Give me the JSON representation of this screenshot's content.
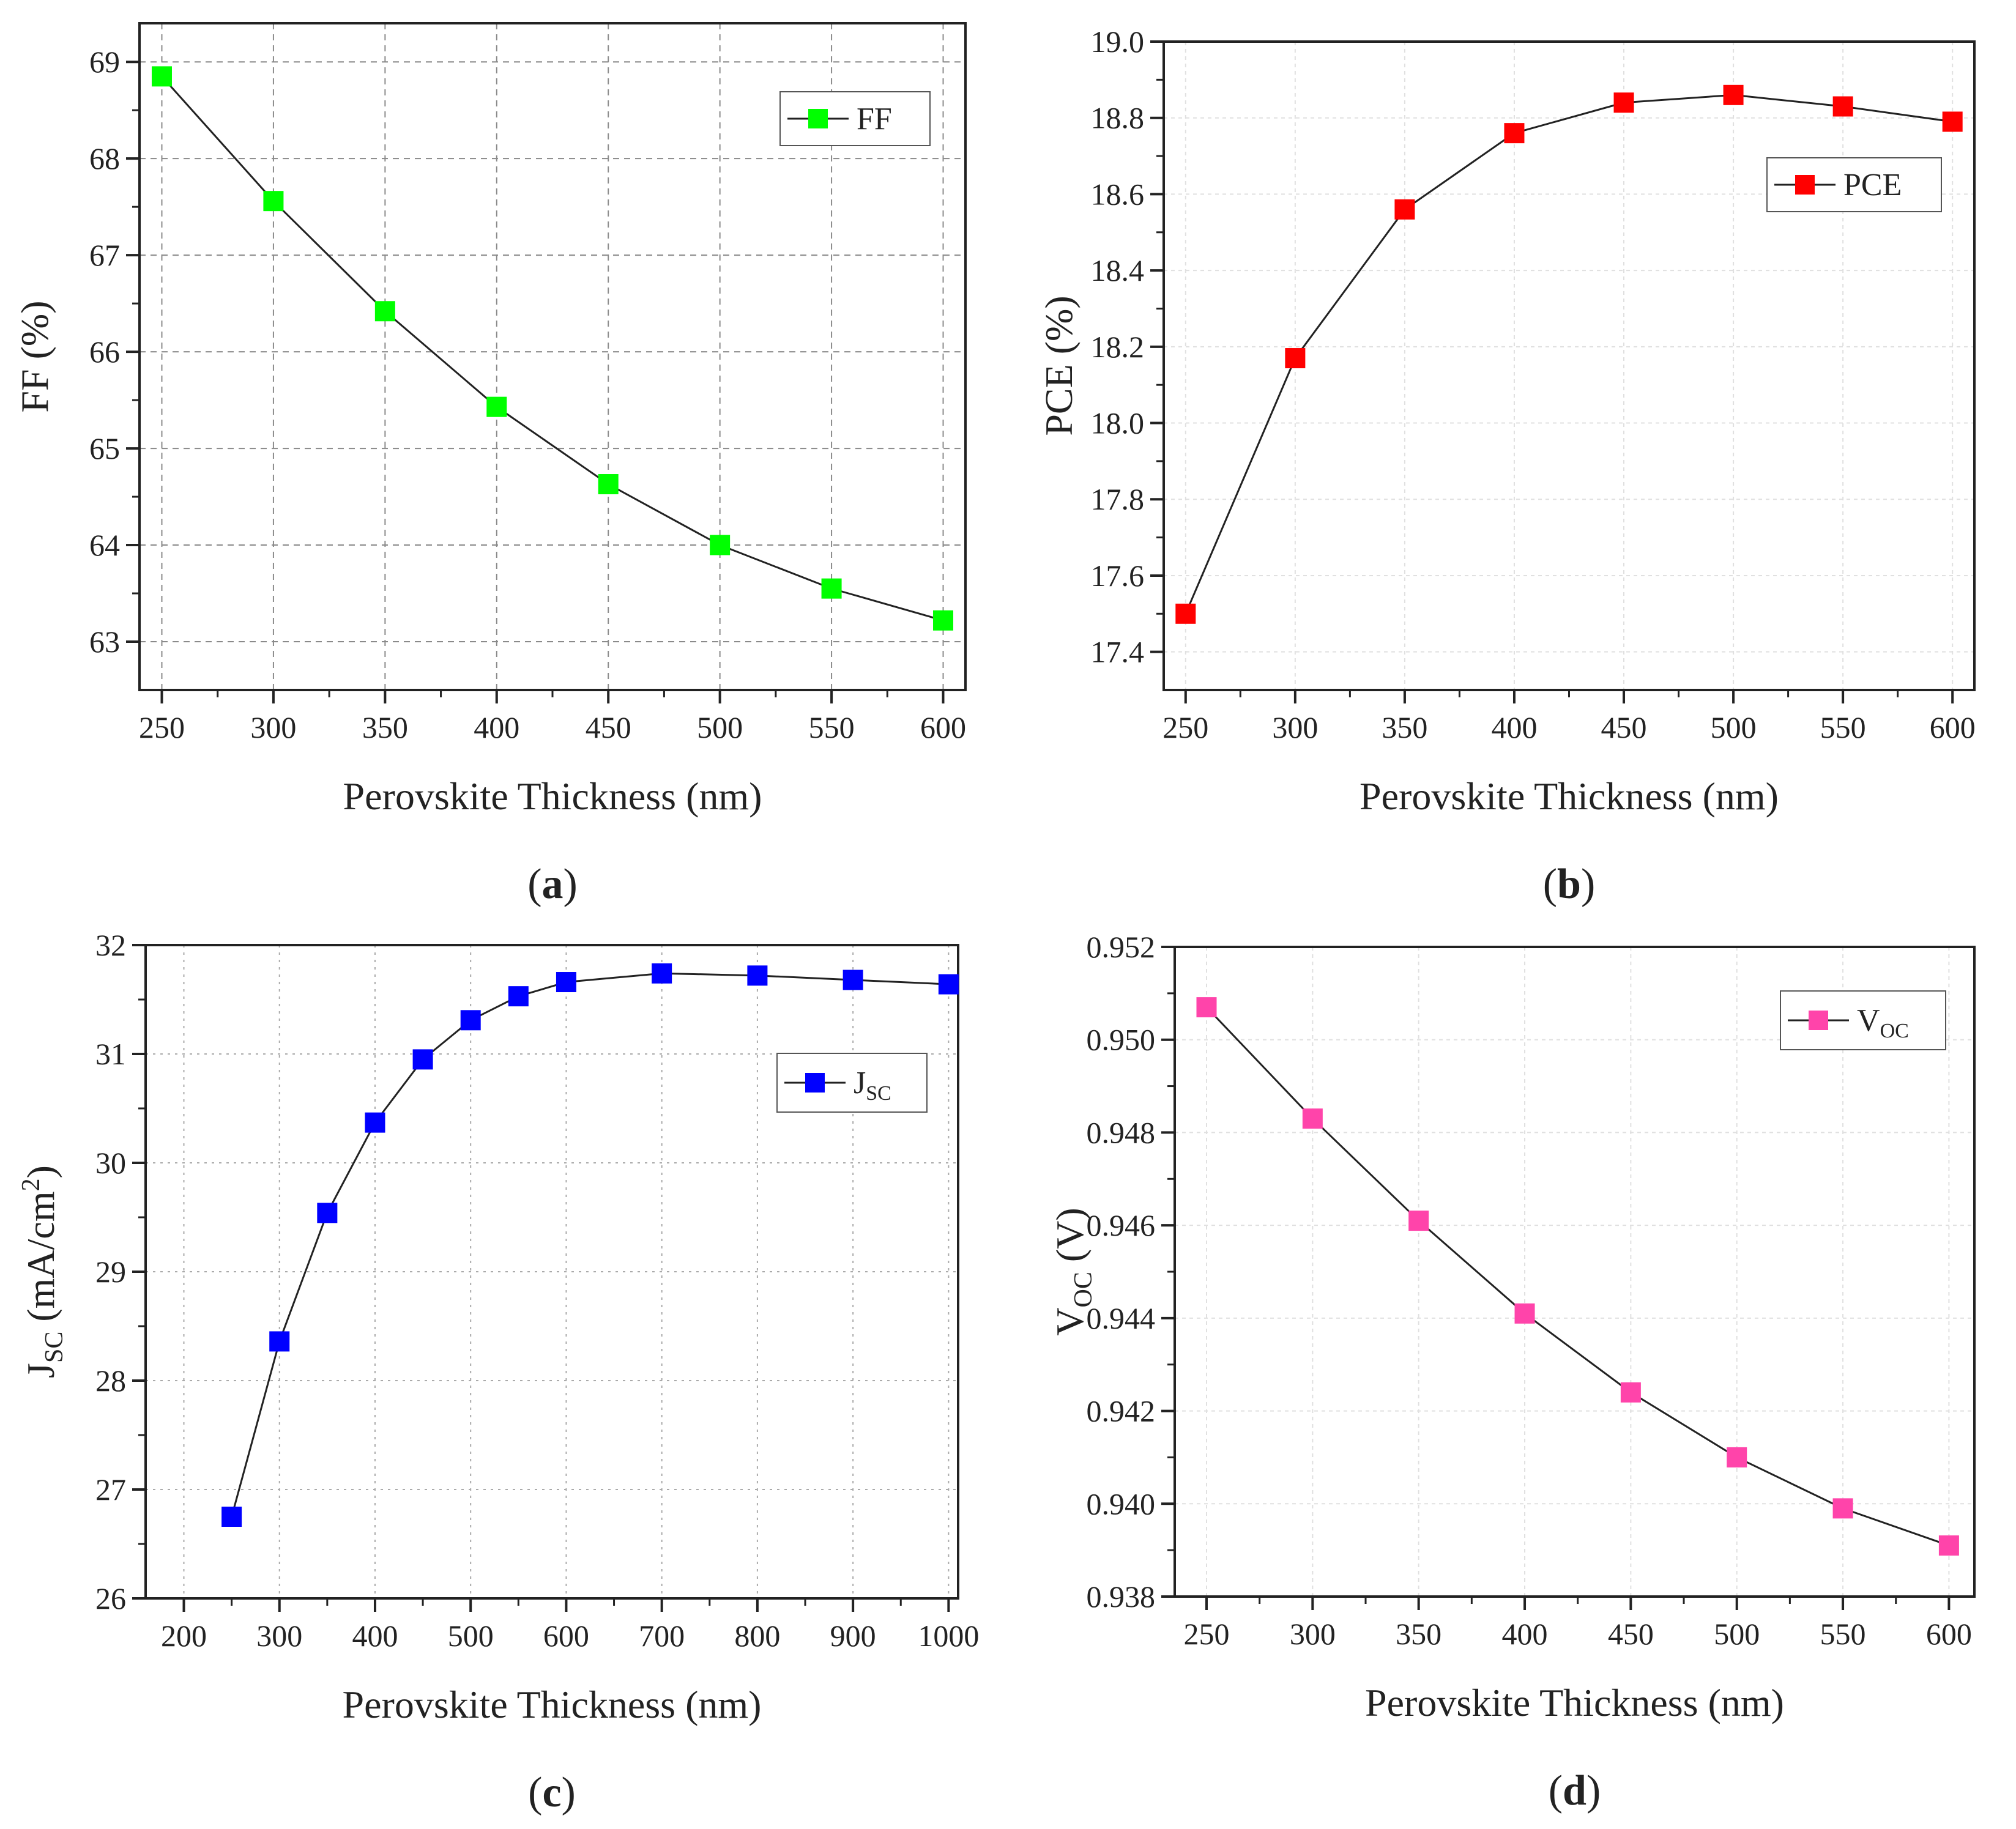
{
  "chart_data": [
    {
      "panel": "(a)",
      "panel_letter": "a",
      "type": "line",
      "ylabel": "FF (%)",
      "xlabel": "Perovskite Thickness (nm)",
      "x": [
        250,
        300,
        350,
        400,
        450,
        500,
        550,
        600
      ],
      "series": [
        {
          "name": "FF",
          "color": "#00ff00",
          "values": [
            68.85,
            67.56,
            66.42,
            65.43,
            64.63,
            64.0,
            63.55,
            63.22
          ]
        }
      ],
      "xlim": [
        240,
        610
      ],
      "ylim": [
        62.5,
        69.4
      ],
      "xticks": [
        250,
        300,
        350,
        400,
        450,
        500,
        550,
        600
      ],
      "yticks": [
        63,
        64,
        65,
        66,
        67,
        68,
        69
      ],
      "grid": "dashed",
      "legend": "top-right"
    },
    {
      "panel": "(b)",
      "panel_letter": "b",
      "type": "line",
      "ylabel": "PCE (%)",
      "xlabel": "Perovskite Thickness (nm)",
      "x": [
        250,
        300,
        350,
        400,
        450,
        500,
        550,
        600
      ],
      "series": [
        {
          "name": "PCE",
          "color": "#ff0000",
          "values": [
            17.5,
            18.17,
            18.56,
            18.76,
            18.84,
            18.86,
            18.83,
            18.79
          ]
        }
      ],
      "xlim": [
        240,
        610
      ],
      "ylim": [
        17.3,
        19.0
      ],
      "xticks": [
        250,
        300,
        350,
        400,
        450,
        500,
        550,
        600
      ],
      "yticks": [
        17.4,
        17.6,
        17.8,
        18.0,
        18.2,
        18.4,
        18.6,
        18.8,
        19.0
      ],
      "ytick_labels": [
        "17.4",
        "17.6",
        "17.8",
        "18.0",
        "18.2",
        "18.4",
        "18.6",
        "18.8",
        "19.0"
      ],
      "grid": "light",
      "legend": "top-right"
    },
    {
      "panel": "(c)",
      "panel_letter": "c",
      "type": "line",
      "ylabel": "J_SC (mA/cm^2)",
      "ylabel_parts": {
        "main": "J",
        "sub": "SC",
        "rest": " (mA/cm",
        "sup": "2",
        "end": ")"
      },
      "legend_parts": {
        "main": "J",
        "sub": "SC"
      },
      "xlabel": "Perovskite Thickness (nm)",
      "x": [
        250,
        300,
        350,
        400,
        450,
        500,
        550,
        600,
        700,
        800,
        900,
        1000
      ],
      "series": [
        {
          "name": "J_SC",
          "color": "#0000ff",
          "values": [
            26.75,
            28.36,
            29.54,
            30.37,
            30.95,
            31.31,
            31.53,
            31.66,
            31.74,
            31.72,
            31.68,
            31.64
          ]
        }
      ],
      "xlim": [
        160,
        1010
      ],
      "ylim": [
        26,
        32
      ],
      "xticks": [
        200,
        300,
        400,
        500,
        600,
        700,
        800,
        900,
        1000
      ],
      "yticks": [
        26,
        27,
        28,
        29,
        30,
        31,
        32
      ],
      "grid": "dotted",
      "legend": "right"
    },
    {
      "panel": "(d)",
      "panel_letter": "d",
      "type": "line",
      "ylabel": "V_OC (V)",
      "ylabel_parts": {
        "main": "V",
        "sub": "OC",
        "rest": " (V)"
      },
      "legend_parts": {
        "main": "V",
        "sub": "OC"
      },
      "xlabel": "Perovskite Thickness (nm)",
      "x": [
        250,
        300,
        350,
        400,
        450,
        500,
        550,
        600
      ],
      "series": [
        {
          "name": "V_OC",
          "color": "#ff44aa",
          "values": [
            0.9507,
            0.9483,
            0.9461,
            0.9441,
            0.9424,
            0.941,
            0.9399,
            0.9391
          ]
        }
      ],
      "xlim": [
        235,
        612
      ],
      "ylim": [
        0.938,
        0.952
      ],
      "xticks": [
        250,
        300,
        350,
        400,
        450,
        500,
        550,
        600
      ],
      "yticks": [
        0.938,
        0.94,
        0.942,
        0.944,
        0.946,
        0.948,
        0.95,
        0.952
      ],
      "ytick_labels": [
        "0.938",
        "0.940",
        "0.942",
        "0.944",
        "0.946",
        "0.948",
        "0.950",
        "0.952"
      ],
      "grid": "light",
      "legend": "top-right"
    }
  ]
}
